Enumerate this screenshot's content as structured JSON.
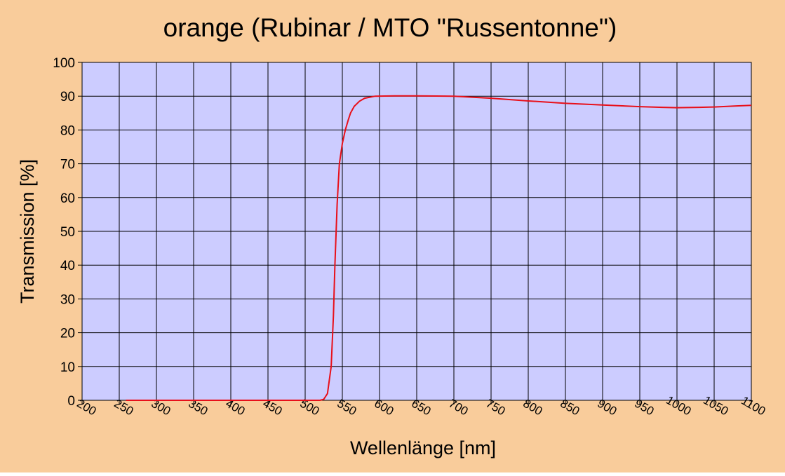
{
  "chart_data": {
    "type": "line",
    "title": "orange (Rubinar / MTO \"Russentonne\")",
    "xlabel": "Wellenlänge [nm]",
    "ylabel": "Transmission [%]",
    "xlim": [
      200,
      1100
    ],
    "ylim": [
      0,
      100
    ],
    "xticks": [
      200,
      250,
      300,
      350,
      400,
      450,
      500,
      550,
      600,
      650,
      700,
      750,
      800,
      850,
      900,
      950,
      1000,
      1050,
      1100
    ],
    "yticks": [
      0,
      10,
      20,
      30,
      40,
      50,
      60,
      70,
      80,
      90,
      100
    ],
    "grid": true,
    "background": "#f9cc9b",
    "plot_background": "#ccccff",
    "series": [
      {
        "color": "#e8101a",
        "x": [
          259,
          300,
          400,
          500,
          520,
          525,
          530,
          535,
          538,
          540,
          543,
          546,
          550,
          554,
          558,
          561,
          566,
          573,
          580,
          594,
          620,
          650,
          700,
          750,
          800,
          850,
          900,
          950,
          980,
          1000,
          1030,
          1050,
          1080,
          1100
        ],
        "values": [
          0,
          0,
          0,
          0,
          0,
          0.3,
          2,
          10,
          25,
          40,
          58,
          70,
          76,
          80,
          83,
          85,
          87,
          88.5,
          89.4,
          90,
          90.1,
          90.1,
          90,
          89.4,
          88.6,
          87.9,
          87.4,
          86.9,
          86.7,
          86.6,
          86.7,
          86.8,
          87.1,
          87.3
        ]
      }
    ]
  }
}
